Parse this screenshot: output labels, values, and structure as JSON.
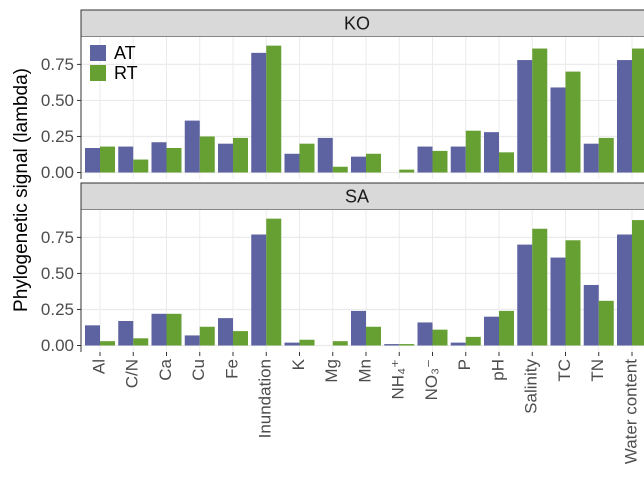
{
  "chart_data": {
    "type": "bar",
    "ylabel": "Phylogenetic signal (lambda)",
    "categories": [
      "Al",
      "C/N",
      "Ca",
      "Cu",
      "Fe",
      "Inundation",
      "K",
      "Mg",
      "Mn",
      "NH₄⁺",
      "NO₃⁻",
      "P",
      "pH",
      "Salinity",
      "TC",
      "TN",
      "Water content"
    ],
    "series": [
      {
        "name": "AT",
        "color": "#5d62a0"
      },
      {
        "name": "RT",
        "color": "#66a032"
      }
    ],
    "legend": "top-left",
    "grid": true,
    "panels": [
      {
        "title": "KO",
        "ylim": [
          -0.045,
          0.94
        ],
        "yticks": [
          {
            "value": 0,
            "label": "0.00"
          },
          {
            "value": 0.25,
            "label": "0.25"
          },
          {
            "value": 0.5,
            "label": "0.50"
          },
          {
            "value": 0.75,
            "label": "0.75"
          }
        ],
        "series": [
          {
            "values": [
              0.17,
              0.18,
              0.21,
              0.36,
              0.2,
              0.83,
              0.13,
              0.24,
              0.11,
              0.0,
              0.18,
              0.18,
              0.28,
              0.78,
              0.59,
              0.2,
              0.78
            ]
          },
          {
            "values": [
              0.18,
              0.09,
              0.17,
              0.25,
              0.24,
              0.88,
              0.2,
              0.04,
              0.13,
              0.02,
              0.15,
              0.29,
              0.14,
              0.86,
              0.7,
              0.24,
              0.86
            ]
          }
        ]
      },
      {
        "title": "SA",
        "ylim": [
          -0.045,
          0.94
        ],
        "yticks": [
          {
            "value": 0,
            "label": "0.00"
          },
          {
            "value": 0.25,
            "label": "0.25"
          },
          {
            "value": 0.5,
            "label": "0.50"
          },
          {
            "value": 0.75,
            "label": "0.75"
          }
        ],
        "series": [
          {
            "values": [
              0.14,
              0.17,
              0.22,
              0.07,
              0.19,
              0.77,
              0.02,
              0.0,
              0.24,
              0.01,
              0.16,
              0.02,
              0.2,
              0.7,
              0.61,
              0.42,
              0.77
            ]
          },
          {
            "values": [
              0.03,
              0.05,
              0.22,
              0.13,
              0.1,
              0.88,
              0.04,
              0.03,
              0.13,
              0.01,
              0.11,
              0.06,
              0.24,
              0.81,
              0.73,
              0.31,
              0.87
            ]
          }
        ]
      }
    ]
  }
}
